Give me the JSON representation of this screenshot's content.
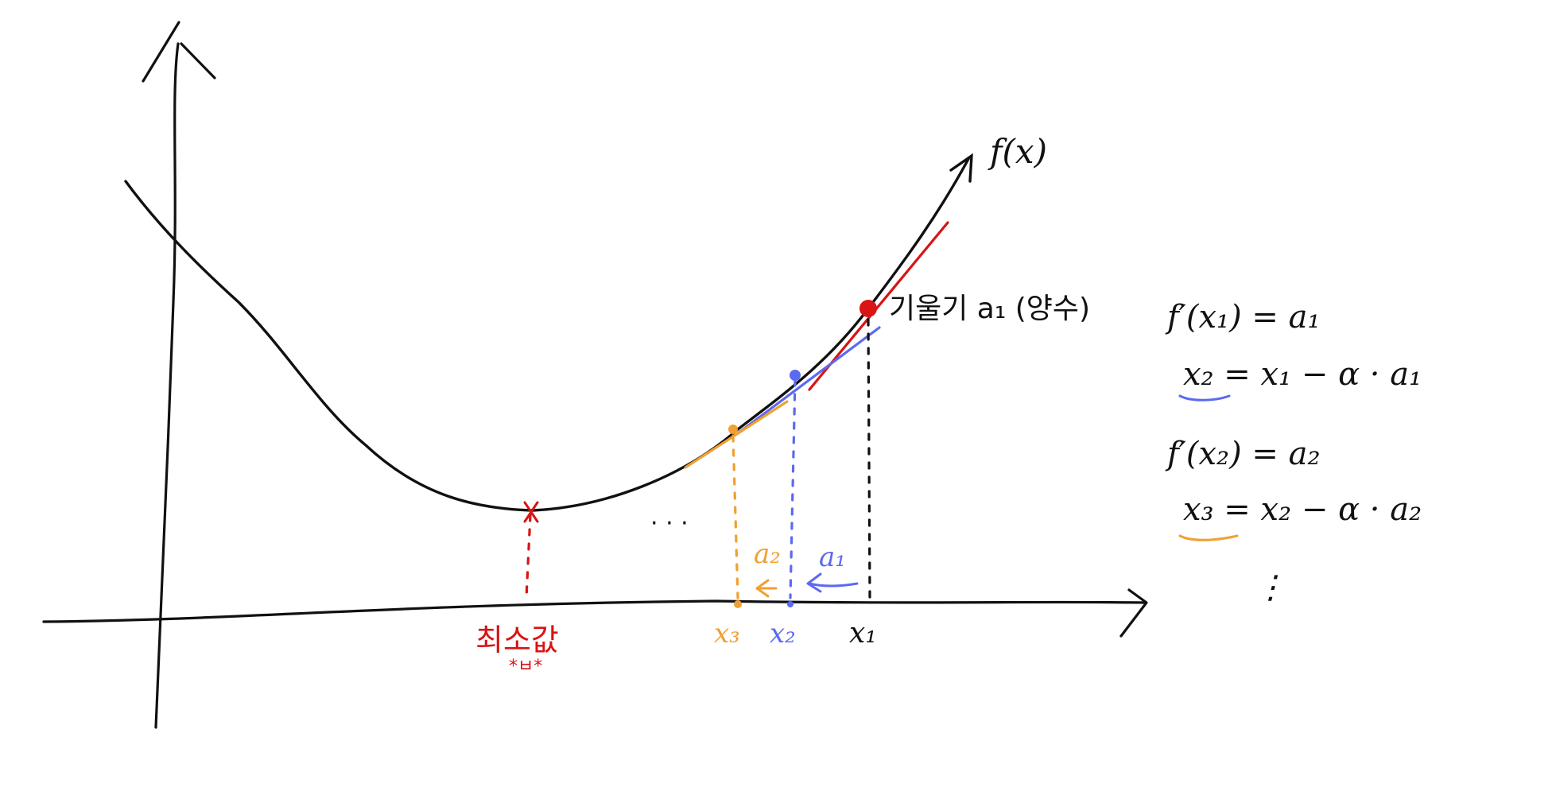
{
  "colors": {
    "ink": "#111111",
    "red": "#d81414",
    "blue": "#5b6af0",
    "orange": "#f0a030"
  },
  "labels": {
    "function": "f(x)",
    "slope_note": "기울기 a₁ (양수)",
    "minimum": "최소값",
    "minimum_sub": "*ㅂ*",
    "ellipsis": "· · ·",
    "x1": "x₁",
    "x2": "x₂",
    "x3": "x₃",
    "a1": "a₁",
    "a2": "a₂"
  },
  "equations": [
    "f′(x₁) = a₁",
    "x₂ = x₁ − α · a₁",
    "f′(x₂) = a₂",
    "x₃ = x₂ − α · a₂",
    "⋮"
  ]
}
